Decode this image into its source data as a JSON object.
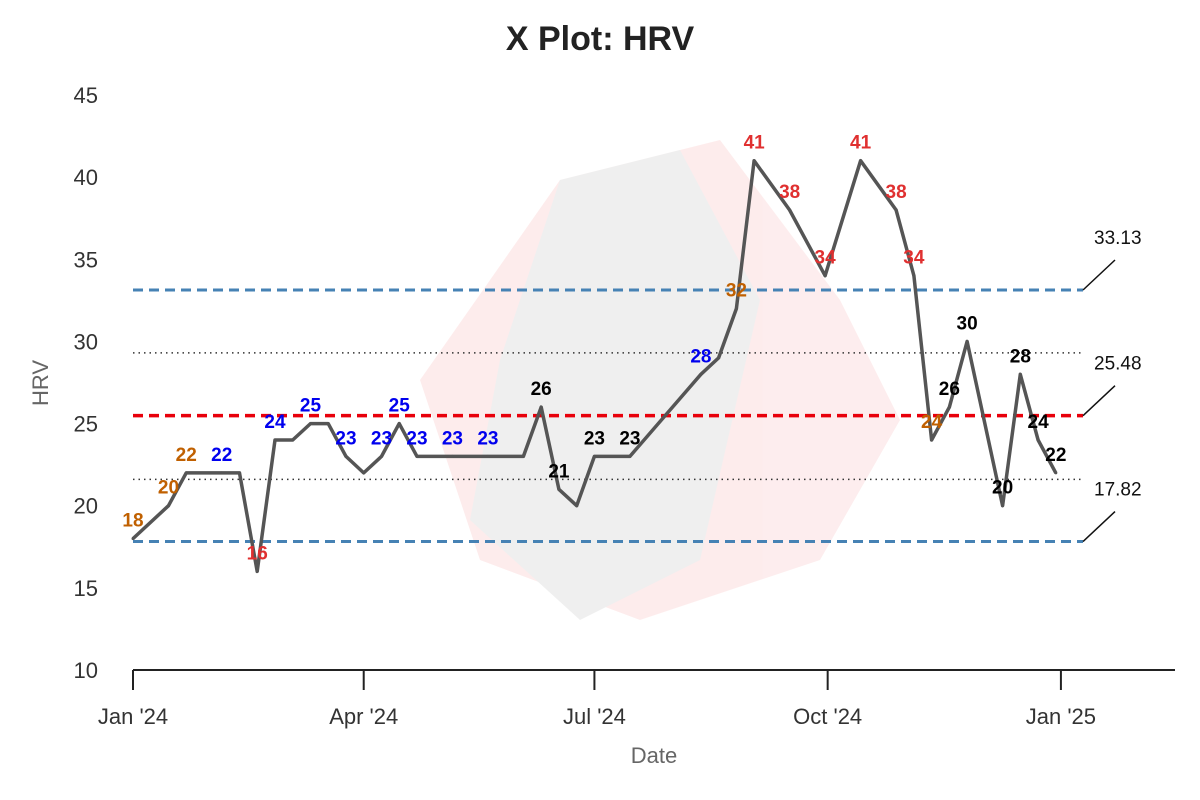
{
  "chart_data": {
    "type": "line",
    "title": "X Plot: HRV",
    "xlabel": "Date",
    "ylabel": "HRV",
    "ylim": [
      10,
      45
    ],
    "yticks": [
      10,
      15,
      20,
      25,
      30,
      35,
      40,
      45
    ],
    "xlim": [
      "2024-01-01",
      "2025-02-15"
    ],
    "xticks": [
      {
        "date": "2024-01-01",
        "label": "Jan '24"
      },
      {
        "date": "2024-04-01",
        "label": "Apr '24"
      },
      {
        "date": "2024-07-01",
        "label": "Jul '24"
      },
      {
        "date": "2024-10-01",
        "label": "Oct '24"
      },
      {
        "date": "2025-01-01",
        "label": "Jan '25"
      }
    ],
    "control_limits": {
      "ucl": 33.13,
      "center": 25.48,
      "lcl": 17.82,
      "ucl_label": "33.13",
      "center_label": "25.48",
      "lcl_label": "17.82"
    },
    "sigma_lines": [
      29.3,
      21.6
    ],
    "colors": {
      "line": "#555555",
      "limits": "#4682b4",
      "center": "#e8000b",
      "sigma": "#333333",
      "label_black": "#000000",
      "label_blue": "#0000ee",
      "label_orange": "#c06000",
      "label_red": "#e03030"
    },
    "series": [
      {
        "points": [
          {
            "x": "2024-01-01",
            "y": 18,
            "label": "18",
            "color": "label_orange"
          },
          {
            "x": "2024-01-15",
            "y": 20,
            "label": "20",
            "color": "label_orange"
          },
          {
            "x": "2024-01-22",
            "y": 22,
            "label": "22",
            "color": "label_orange"
          },
          {
            "x": "2024-02-05",
            "y": 22,
            "label": "22",
            "color": "label_blue"
          },
          {
            "x": "2024-02-12",
            "y": 22
          },
          {
            "x": "2024-02-19",
            "y": 16,
            "label": "16",
            "color": "label_red"
          },
          {
            "x": "2024-02-26",
            "y": 24,
            "label": "24",
            "color": "label_blue"
          },
          {
            "x": "2024-03-04",
            "y": 24
          },
          {
            "x": "2024-03-11",
            "y": 25,
            "label": "25",
            "color": "label_blue"
          },
          {
            "x": "2024-03-18",
            "y": 25
          },
          {
            "x": "2024-03-25",
            "y": 23,
            "label": "23",
            "color": "label_blue"
          },
          {
            "x": "2024-04-01",
            "y": 22
          },
          {
            "x": "2024-04-08",
            "y": 23,
            "label": "23",
            "color": "label_blue"
          },
          {
            "x": "2024-04-15",
            "y": 25,
            "label": "25",
            "color": "label_blue"
          },
          {
            "x": "2024-04-22",
            "y": 23,
            "label": "23",
            "color": "label_blue"
          },
          {
            "x": "2024-05-06",
            "y": 23,
            "label": "23",
            "color": "label_blue"
          },
          {
            "x": "2024-05-20",
            "y": 23,
            "label": "23",
            "color": "label_blue"
          },
          {
            "x": "2024-06-03",
            "y": 23
          },
          {
            "x": "2024-06-10",
            "y": 26,
            "label": "26",
            "color": "label_black"
          },
          {
            "x": "2024-06-17",
            "y": 21,
            "label": "21",
            "color": "label_black"
          },
          {
            "x": "2024-06-24",
            "y": 20
          },
          {
            "x": "2024-07-01",
            "y": 23,
            "label": "23",
            "color": "label_black"
          },
          {
            "x": "2024-07-15",
            "y": 23,
            "label": "23",
            "color": "label_black"
          },
          {
            "x": "2024-08-12",
            "y": 28,
            "label": "28",
            "color": "label_blue"
          },
          {
            "x": "2024-08-19",
            "y": 29
          },
          {
            "x": "2024-08-26",
            "y": 32,
            "label": "32",
            "color": "label_orange"
          },
          {
            "x": "2024-09-02",
            "y": 41,
            "label": "41",
            "color": "label_red"
          },
          {
            "x": "2024-09-16",
            "y": 38,
            "label": "38",
            "color": "label_red"
          },
          {
            "x": "2024-09-30",
            "y": 34,
            "label": "34",
            "color": "label_red"
          },
          {
            "x": "2024-10-14",
            "y": 41,
            "label": "41",
            "color": "label_red"
          },
          {
            "x": "2024-10-28",
            "y": 38,
            "label": "38",
            "color": "label_red"
          },
          {
            "x": "2024-11-04",
            "y": 34,
            "label": "34",
            "color": "label_red"
          },
          {
            "x": "2024-11-11",
            "y": 24,
            "label": "24",
            "color": "label_orange"
          },
          {
            "x": "2024-11-18",
            "y": 26,
            "label": "26",
            "color": "label_black"
          },
          {
            "x": "2024-11-25",
            "y": 30,
            "label": "30",
            "color": "label_black"
          },
          {
            "x": "2024-12-09",
            "y": 20,
            "label": "20",
            "color": "label_black"
          },
          {
            "x": "2024-12-16",
            "y": 28,
            "label": "28",
            "color": "label_black"
          },
          {
            "x": "2024-12-23",
            "y": 24,
            "label": "24",
            "color": "label_black"
          },
          {
            "x": "2024-12-30",
            "y": 22,
            "label": "22",
            "color": "label_black"
          }
        ]
      }
    ]
  }
}
